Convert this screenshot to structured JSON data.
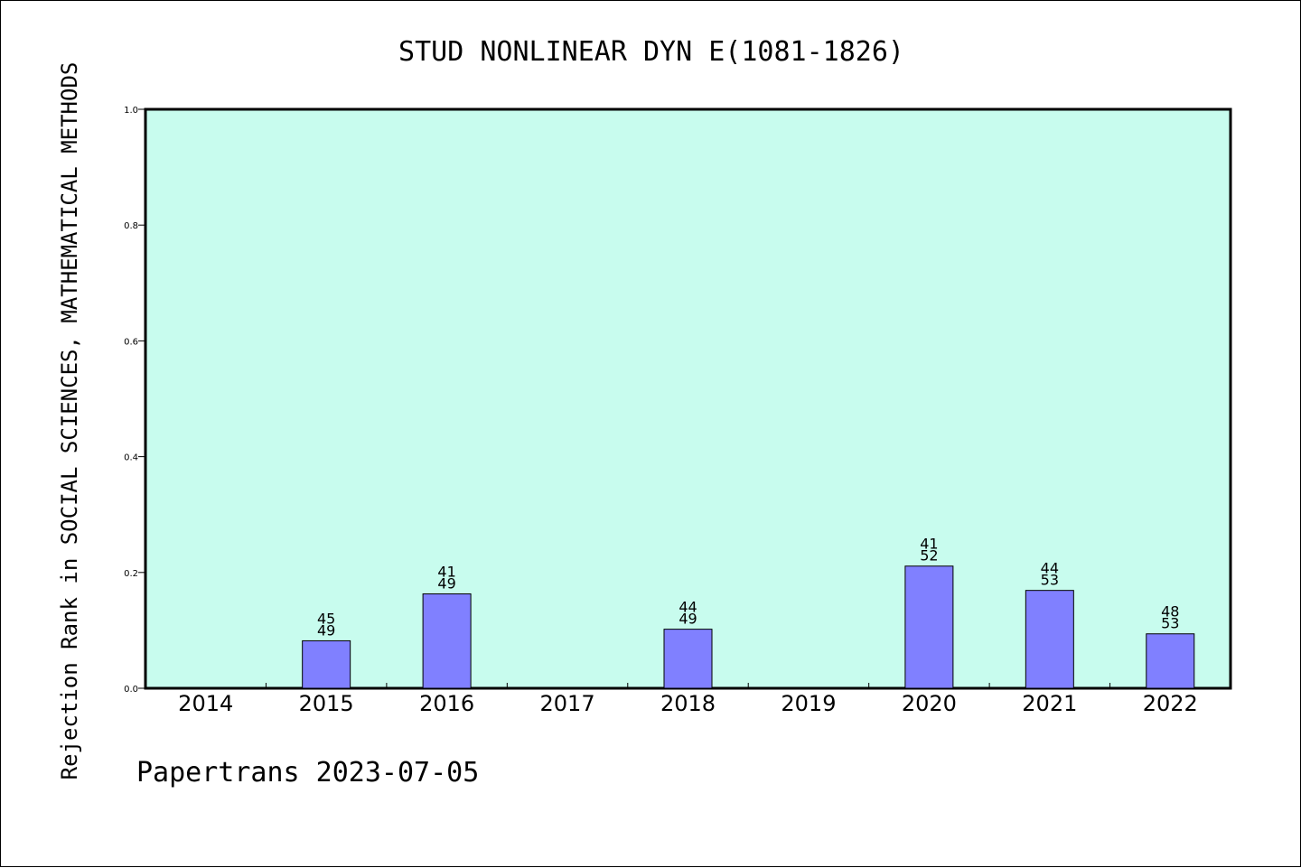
{
  "chart_data": {
    "type": "bar",
    "title": "STUD NONLINEAR DYN E(1081-1826)",
    "ylabel": "Rejection Rank in SOCIAL SCIENCES, MATHEMATICAL METHODS",
    "xlabel": "",
    "categories": [
      "2014",
      "2015",
      "2016",
      "2017",
      "2018",
      "2019",
      "2020",
      "2021",
      "2022"
    ],
    "values": [
      null,
      0.082,
      0.163,
      null,
      0.102,
      null,
      0.211,
      0.169,
      0.094
    ],
    "bar_labels": [
      null,
      [
        "45",
        "49"
      ],
      [
        "41",
        "49"
      ],
      null,
      [
        "44",
        "49"
      ],
      null,
      [
        "41",
        "52"
      ],
      [
        "44",
        "53"
      ],
      [
        "48",
        "53"
      ]
    ],
    "ylim": [
      0,
      1.0
    ],
    "yticks": [
      "0.0",
      "0.2",
      "0.4",
      "0.6",
      "0.8",
      "1.0"
    ],
    "ytick_values": [
      0,
      0.2,
      0.4,
      0.6,
      0.8,
      1.0
    ],
    "grid": false,
    "colors": {
      "plot_background": "#c8fcee",
      "bar_fill": "#8080ff",
      "bar_stroke": "#000000"
    }
  },
  "footer": {
    "text": "Papertrans 2023-07-05"
  }
}
